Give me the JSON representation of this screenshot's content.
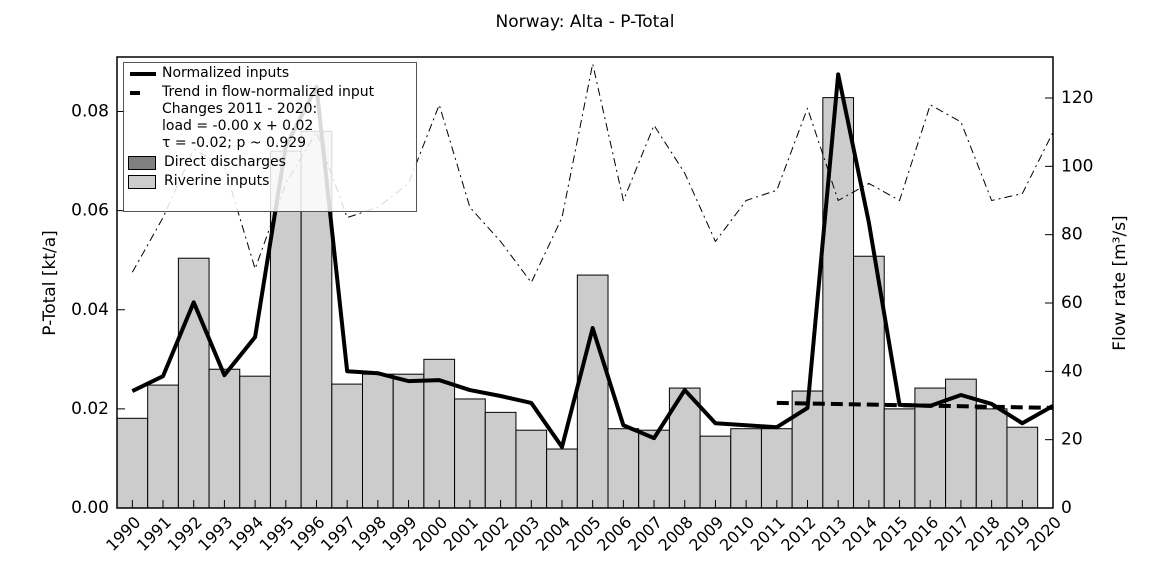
{
  "chart_data": {
    "type": "bar",
    "title": "Norway: Alta - P-Total",
    "y_label": "P-Total [kt/a]",
    "y2_label": "Flow rate [m³/s]",
    "x": [
      1990,
      1991,
      1992,
      1993,
      1994,
      1995,
      1996,
      1997,
      1998,
      1999,
      2000,
      2001,
      2002,
      2003,
      2004,
      2005,
      2006,
      2007,
      2008,
      2009,
      2010,
      2011,
      2012,
      2013,
      2014,
      2015,
      2016,
      2017,
      2018,
      2019,
      2020
    ],
    "xlim": [
      1989.5,
      2020
    ],
    "xticks": [
      1990,
      1991,
      1992,
      1993,
      1994,
      1995,
      1996,
      1997,
      1998,
      1999,
      2000,
      2001,
      2002,
      2003,
      2004,
      2005,
      2006,
      2007,
      2008,
      2009,
      2010,
      2011,
      2012,
      2013,
      2014,
      2015,
      2016,
      2017,
      2018,
      2019,
      2020
    ],
    "ylim": [
      0,
      0.091
    ],
    "yticks": [
      {
        "value": 0,
        "label": "0.00"
      },
      0.02,
      0.04,
      0.06,
      0.08
    ],
    "y2lim": [
      0,
      132
    ],
    "y2ticks": [
      0,
      20,
      40,
      60,
      80,
      100,
      120
    ],
    "legend": "upper left",
    "series": [
      {
        "name": "Normalized inputs",
        "type": "line",
        "linestyle": "solid",
        "color": "#000000",
        "values": [
          0.0236,
          0.0266,
          0.0415,
          0.0268,
          0.0345,
          0.073,
          0.085,
          0.0276,
          0.0272,
          0.0256,
          0.0258,
          0.0238,
          0.0226,
          0.0212,
          0.0123,
          0.0363,
          0.0167,
          0.0141,
          0.0238,
          0.0171,
          0.0167,
          0.0163,
          0.0202,
          0.0875,
          0.0576,
          0.0208,
          0.0206,
          0.0228,
          0.021,
          0.0171,
          0.0206
        ]
      },
      {
        "name": "Trend in flow-normalized input\nChanges 2011 - 2020:\nload = -0.00 x +  0.02\nτ = -0.02; p ~ 0.929",
        "type": "line",
        "linestyle": "dashed",
        "color": "#000000",
        "x": [
          2011,
          2020
        ],
        "values": [
          0.0212,
          0.0202
        ]
      },
      {
        "name": "Direct discharges",
        "type": "bar",
        "color": "#808080"
      },
      {
        "name": "Riverine inputs",
        "type": "bar",
        "color": "#cccccc",
        "values": [
          0.0181,
          0.0248,
          0.0504,
          0.028,
          0.0266,
          0.072,
          0.076,
          0.025,
          0.027,
          0.027,
          0.03,
          0.022,
          0.0193,
          0.0157,
          0.0119,
          0.047,
          0.016,
          0.0157,
          0.0242,
          0.0145,
          0.016,
          0.016,
          0.0236,
          0.0828,
          0.0508,
          0.02,
          0.0242,
          0.026,
          0.02,
          0.0163,
          null
        ]
      },
      {
        "type": "line",
        "linestyle": "dashdot",
        "axis": "y2",
        "color": "#000000",
        "values": [
          69,
          85,
          105,
          100,
          70,
          95,
          110,
          85,
          88,
          95,
          118,
          88,
          78,
          66,
          85,
          130,
          90,
          112,
          98,
          78,
          90,
          93,
          117,
          90,
          95,
          90,
          118,
          113,
          90,
          92,
          110
        ]
      }
    ]
  }
}
